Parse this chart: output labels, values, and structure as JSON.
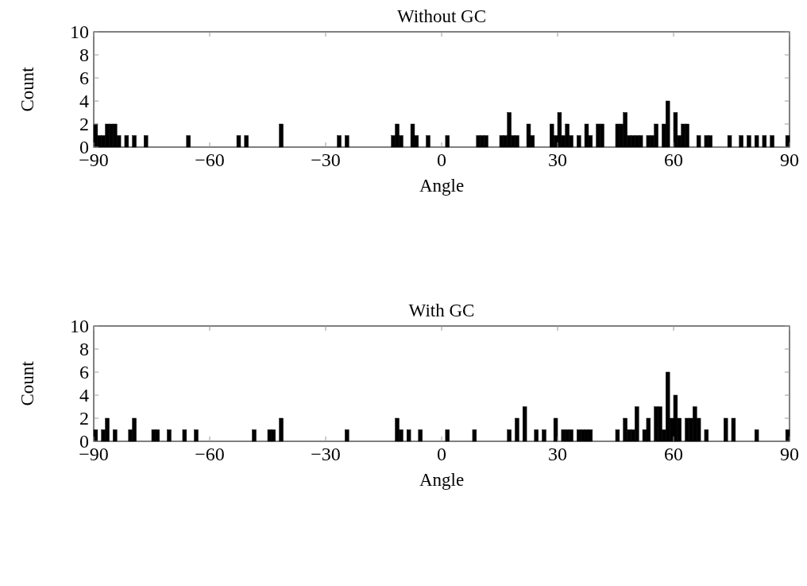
{
  "chart_data": [
    {
      "type": "histogram",
      "title": "Without GC",
      "xlabel": "Angle",
      "ylabel": "Count",
      "color": "#000000",
      "bins": [
        -90,
        -89,
        -88,
        -87,
        -86,
        -85,
        -84,
        -83,
        -82,
        -81,
        -80,
        -79,
        -78,
        -77,
        -76,
        -75,
        -74,
        -73,
        -72,
        -71,
        -70,
        -69,
        -68,
        -67,
        -66,
        -65,
        -64,
        -63,
        -62,
        -61,
        -60,
        -59,
        -58,
        -57,
        -56,
        -55,
        -54,
        -53,
        -52,
        -51,
        -50,
        -49,
        -48,
        -47,
        -46,
        -45,
        -44,
        -43,
        -42,
        -41,
        -40,
        -39,
        -38,
        -37,
        -36,
        -35,
        -34,
        -33,
        -32,
        -31,
        -30,
        -29,
        -28,
        -27,
        -26,
        -25,
        -24,
        -23,
        -22,
        -21,
        -20,
        -19,
        -18,
        -17,
        -16,
        -15,
        -14,
        -13,
        -12,
        -11,
        -10,
        -9,
        -8,
        -7,
        -6,
        -5,
        -4,
        -3,
        -2,
        -1,
        0,
        1,
        2,
        3,
        4,
        5,
        6,
        7,
        8,
        9,
        10,
        11,
        12,
        13,
        14,
        15,
        16,
        17,
        18,
        19,
        20,
        21,
        22,
        23,
        24,
        25,
        26,
        27,
        28,
        29,
        30,
        31,
        32,
        33,
        34,
        35,
        36,
        37,
        38,
        39,
        40,
        41,
        42,
        43,
        44,
        45,
        46,
        47,
        48,
        49,
        50,
        51,
        52,
        53,
        54,
        55,
        56,
        57,
        58,
        59,
        60,
        61,
        62,
        63,
        64,
        65,
        66,
        67,
        68,
        69,
        70,
        71,
        72,
        73,
        74,
        75,
        76,
        77,
        78,
        79,
        80,
        81,
        82,
        83,
        84,
        85,
        86,
        87,
        88,
        89,
        90
      ],
      "values": [
        2,
        1,
        1,
        2,
        2,
        2,
        1,
        0,
        1,
        0,
        1,
        0,
        0,
        1,
        0,
        0,
        0,
        0,
        0,
        0,
        0,
        0,
        0,
        0,
        1,
        0,
        0,
        0,
        0,
        0,
        0,
        0,
        0,
        0,
        0,
        0,
        0,
        1,
        0,
        1,
        0,
        0,
        0,
        0,
        0,
        0,
        0,
        0,
        2,
        0,
        0,
        0,
        0,
        0,
        0,
        0,
        0,
        0,
        0,
        0,
        0,
        0,
        0,
        1,
        0,
        1,
        0,
        0,
        0,
        0,
        0,
        0,
        0,
        0,
        0,
        0,
        0,
        1,
        2,
        1,
        0,
        0,
        2,
        1,
        0,
        0,
        1,
        0,
        0,
        0,
        0,
        1,
        0,
        0,
        0,
        0,
        0,
        0,
        0,
        1,
        1,
        1,
        0,
        0,
        0,
        1,
        1,
        3,
        1,
        1,
        0,
        0,
        2,
        1,
        0,
        0,
        0,
        0,
        2,
        1,
        3,
        1,
        2,
        1,
        0,
        1,
        0,
        2,
        1,
        0,
        2,
        2,
        0,
        0,
        0,
        2,
        2,
        3,
        1,
        1,
        1,
        1,
        0,
        1,
        1,
        2,
        0,
        2,
        4,
        0,
        3,
        1,
        2,
        2,
        0,
        0,
        1,
        0,
        1,
        1,
        0,
        0,
        0,
        0,
        1,
        0,
        0,
        1,
        0,
        1,
        0,
        1,
        0,
        1,
        0,
        1,
        0,
        0,
        0,
        1
      ],
      "xlim": [
        -90,
        90
      ],
      "xticks": [
        {
          "value": -90,
          "label": "−90"
        },
        {
          "value": -60,
          "label": "−60"
        },
        {
          "value": -30,
          "label": "−30"
        },
        0,
        30,
        60,
        90
      ],
      "ylim": [
        0,
        10
      ],
      "yticks": [
        0,
        2,
        4,
        6,
        8,
        10
      ]
    },
    {
      "type": "histogram",
      "title": "With GC",
      "xlabel": "Angle",
      "ylabel": "Count",
      "color": "#000000",
      "bins": [
        -90,
        -89,
        -88,
        -87,
        -86,
        -85,
        -84,
        -83,
        -82,
        -81,
        -80,
        -79,
        -78,
        -77,
        -76,
        -75,
        -74,
        -73,
        -72,
        -71,
        -70,
        -69,
        -68,
        -67,
        -66,
        -65,
        -64,
        -63,
        -62,
        -61,
        -60,
        -59,
        -58,
        -57,
        -56,
        -55,
        -54,
        -53,
        -52,
        -51,
        -50,
        -49,
        -48,
        -47,
        -46,
        -45,
        -44,
        -43,
        -42,
        -41,
        -40,
        -39,
        -38,
        -37,
        -36,
        -35,
        -34,
        -33,
        -32,
        -31,
        -30,
        -29,
        -28,
        -27,
        -26,
        -25,
        -24,
        -23,
        -22,
        -21,
        -20,
        -19,
        -18,
        -17,
        -16,
        -15,
        -14,
        -13,
        -12,
        -11,
        -10,
        -9,
        -8,
        -7,
        -6,
        -5,
        -4,
        -3,
        -2,
        -1,
        0,
        1,
        2,
        3,
        4,
        5,
        6,
        7,
        8,
        9,
        10,
        11,
        12,
        13,
        14,
        15,
        16,
        17,
        18,
        19,
        20,
        21,
        22,
        23,
        24,
        25,
        26,
        27,
        28,
        29,
        30,
        31,
        32,
        33,
        34,
        35,
        36,
        37,
        38,
        39,
        40,
        41,
        42,
        43,
        44,
        45,
        46,
        47,
        48,
        49,
        50,
        51,
        52,
        53,
        54,
        55,
        56,
        57,
        58,
        59,
        60,
        61,
        62,
        63,
        64,
        65,
        66,
        67,
        68,
        69,
        70,
        71,
        72,
        73,
        74,
        75,
        76,
        77,
        78,
        79,
        80,
        81,
        82,
        83,
        84,
        85,
        86,
        87,
        88,
        89,
        90
      ],
      "values": [
        1,
        0,
        1,
        2,
        0,
        1,
        0,
        0,
        0,
        1,
        2,
        0,
        0,
        0,
        0,
        1,
        1,
        0,
        0,
        1,
        0,
        0,
        0,
        1,
        0,
        0,
        1,
        0,
        0,
        0,
        0,
        0,
        0,
        0,
        0,
        0,
        0,
        0,
        0,
        0,
        0,
        1,
        0,
        0,
        0,
        1,
        1,
        0,
        2,
        0,
        0,
        0,
        0,
        0,
        0,
        0,
        0,
        0,
        0,
        0,
        0,
        0,
        0,
        0,
        0,
        1,
        0,
        0,
        0,
        0,
        0,
        0,
        0,
        0,
        0,
        0,
        0,
        0,
        2,
        1,
        0,
        1,
        0,
        0,
        1,
        0,
        0,
        0,
        0,
        0,
        0,
        1,
        0,
        0,
        0,
        0,
        0,
        0,
        1,
        0,
        0,
        0,
        0,
        0,
        0,
        0,
        0,
        1,
        0,
        2,
        0,
        3,
        0,
        0,
        1,
        0,
        1,
        0,
        0,
        2,
        0,
        1,
        1,
        1,
        0,
        1,
        1,
        1,
        1,
        0,
        0,
        0,
        0,
        0,
        0,
        1,
        0,
        2,
        1,
        1,
        3,
        0,
        1,
        2,
        0,
        3,
        3,
        1,
        6,
        2,
        4,
        2,
        0,
        2,
        2,
        3,
        2,
        0,
        1,
        0,
        0,
        0,
        0,
        2,
        0,
        2,
        0,
        0,
        0,
        0,
        0,
        1,
        0,
        0,
        0,
        0,
        0,
        0,
        0,
        1
      ],
      "xlim": [
        -90,
        90
      ],
      "xticks": [
        {
          "value": -90,
          "label": "−90"
        },
        {
          "value": -60,
          "label": "−60"
        },
        {
          "value": -30,
          "label": "−30"
        },
        0,
        30,
        60,
        90
      ],
      "ylim": [
        0,
        10
      ],
      "yticks": [
        0,
        2,
        4,
        6,
        8,
        10
      ]
    }
  ]
}
